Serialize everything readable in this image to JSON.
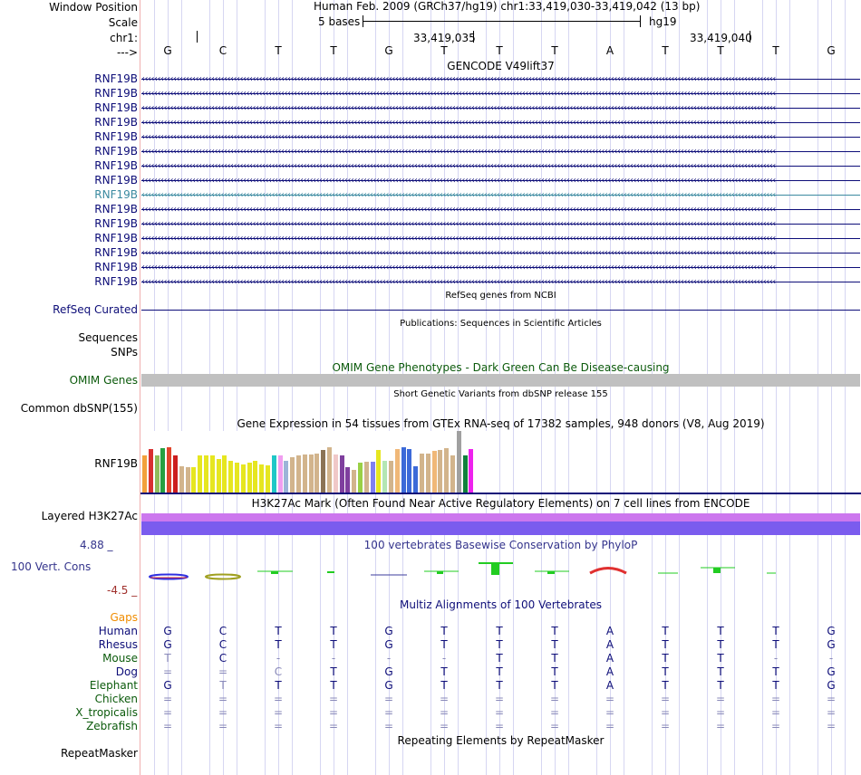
{
  "header": {
    "window_position_label": "Window Position",
    "title_line": "Human Feb. 2009 (GRCh37/hg19)   chr1:33,419,030-33,419,042 (13 bp)",
    "scale_label": "Scale",
    "scale_text": "5 bases",
    "assembly": "hg19",
    "chrom_label": "chr1:",
    "pos1": "33,419,035",
    "pos2": "33,419,040",
    "strand_label": "--->"
  },
  "sequence": [
    "G",
    "C",
    "T",
    "T",
    "G",
    "T",
    "T",
    "T",
    "A",
    "T",
    "T",
    "T",
    "G"
  ],
  "gencode": {
    "title": "GENCODE V49lift37",
    "genes": [
      "RNF19B",
      "RNF19B",
      "RNF19B",
      "RNF19B",
      "RNF19B",
      "RNF19B",
      "RNF19B",
      "RNF19B",
      "RNF19B",
      "RNF19B",
      "RNF19B",
      "RNF19B",
      "RNF19B",
      "RNF19B",
      "RNF19B"
    ],
    "highlight_color": "#3b8aa0",
    "normal_color": "#0d0d78"
  },
  "refseq": {
    "title": "RefSeq genes from NCBI",
    "label": "RefSeq Curated"
  },
  "publications": {
    "title": "Publications: Sequences in Scientific Articles",
    "label1": "Sequences",
    "label2": "SNPs"
  },
  "omim": {
    "title": "OMIM Gene Phenotypes - Dark Green Can Be Disease-causing",
    "label": "OMIM Genes",
    "bar_color": "#c0c0c0",
    "text_color": "#0b5a0b"
  },
  "dbsnp": {
    "title": "Short Genetic Variants from dbSNP release 155",
    "label": "Common dbSNP(155)"
  },
  "gtex": {
    "title": "Gene Expression in 54 tissues from GTEx RNA-seq of 17382 samples, 948 donors (V8, Aug 2019)",
    "label": "RNF19B",
    "chart_data": {
      "type": "bar",
      "title": "Gene Expression in 54 tissues from GTEx RNA-seq of 17382 samples, 948 donors (V8, Aug 2019)",
      "values": [
        0.6,
        0.71,
        0.6,
        0.72,
        0.73,
        0.6,
        0.42,
        0.41,
        0.41,
        0.6,
        0.6,
        0.6,
        0.55,
        0.6,
        0.52,
        0.48,
        0.46,
        0.48,
        0.52,
        0.45,
        0.44,
        0.6,
        0.6,
        0.52,
        0.58,
        0.6,
        0.62,
        0.62,
        0.63,
        0.69,
        0.74,
        0.62,
        0.6,
        0.41,
        0.37,
        0.48,
        0.5,
        0.5,
        0.69,
        0.52,
        0.51,
        0.71,
        0.73,
        0.7,
        0.42,
        0.63,
        0.63,
        0.67,
        0.69,
        0.72,
        0.61,
        1.0,
        0.61,
        0.71
      ],
      "colors": [
        "#f2a03c",
        "#d83030",
        "#8fbc5a",
        "#26a041",
        "#e0442a",
        "#cc1e1e",
        "#d2b48c",
        "#d2b48c",
        "#e6e620",
        "#e6e620",
        "#e6e620",
        "#e6e620",
        "#e6e620",
        "#e6e620",
        "#e6e620",
        "#e6e620",
        "#e6e620",
        "#e6e620",
        "#e6e620",
        "#e6e620",
        "#e6e620",
        "#20c7c7",
        "#f09ef0",
        "#9cb4d8",
        "#d2b48c",
        "#d2b48c",
        "#d2b48c",
        "#d2b48c",
        "#d2b48c",
        "#8b7355",
        "#d2b48c",
        "#f0c8c8",
        "#7f3f9e",
        "#7f3f9e",
        "#d2b48c",
        "#9ad046",
        "#d2b48c",
        "#8080f0",
        "#e6e620",
        "#b4e6b4",
        "#d2b48c",
        "#f0b878",
        "#3c6ad8",
        "#3c6ad8",
        "#3c6ad8",
        "#d2b48c",
        "#d2b48c",
        "#f0b878",
        "#d2b48c",
        "#d2b48c",
        "#d2b48c",
        "#a0a0a0",
        "#10803c",
        "#ee22ee"
      ]
    }
  },
  "h3k27ac": {
    "title": "H3K27Ac Mark (Often Found Near Active Regulatory Elements) on 7 cell lines from ENCODE",
    "label": "Layered H3K27Ac",
    "colors": [
      "#cc77ee",
      "#7b5cee"
    ]
  },
  "conservation": {
    "title": "100 vertebrates Basewise Conservation by PhyloP",
    "label": "100 Vert. Cons",
    "ymax": "4.88 _",
    "ymin": "-4.5 _"
  },
  "multiz": {
    "title": "Multiz Alignments of 100 Vertebrates",
    "gaps_label": "Gaps",
    "species": [
      {
        "name": "Human",
        "color": "#0d0d78",
        "bases": [
          "G",
          "C",
          "T",
          "T",
          "G",
          "T",
          "T",
          "T",
          "A",
          "T",
          "T",
          "T",
          "G"
        ]
      },
      {
        "name": "Rhesus",
        "color": "#0d0d78",
        "bases": [
          "G",
          "C",
          "T",
          "T",
          "G",
          "T",
          "T",
          "T",
          "A",
          "T",
          "T",
          "T",
          "G"
        ]
      },
      {
        "name": "Mouse",
        "color": "#0b5a0b",
        "bases": [
          "T",
          "C",
          "-",
          "-",
          "-",
          "-",
          "T",
          "T",
          "A",
          "T",
          "T",
          "-",
          "-"
        ]
      },
      {
        "name": "Dog",
        "color": "#0d0d78",
        "bases": [
          "=",
          "=",
          "C",
          "T",
          "G",
          "T",
          "T",
          "T",
          "A",
          "T",
          "T",
          "T",
          "G"
        ]
      },
      {
        "name": "Elephant",
        "color": "#0b5a0b",
        "bases": [
          "G",
          "T",
          "T",
          "T",
          "G",
          "T",
          "T",
          "T",
          "A",
          "T",
          "T",
          "T",
          "G"
        ]
      },
      {
        "name": "Chicken",
        "color": "#0b5a0b",
        "bases": [
          "=",
          "=",
          "=",
          "=",
          "=",
          "=",
          "=",
          "=",
          "=",
          "=",
          "=",
          "=",
          "="
        ]
      },
      {
        "name": "X_tropicalis",
        "color": "#0b5a0b",
        "bases": [
          "=",
          "=",
          "=",
          "=",
          "=",
          "=",
          "=",
          "=",
          "=",
          "=",
          "=",
          "=",
          "="
        ]
      },
      {
        "name": "Zebrafish",
        "color": "#0b5a0b",
        "bases": [
          "=",
          "=",
          "=",
          "=",
          "=",
          "=",
          "=",
          "=",
          "=",
          "=",
          "=",
          "=",
          "="
        ]
      }
    ]
  },
  "repeatmasker": {
    "title": "Repeating Elements by RepeatMasker",
    "label": "RepeatMasker"
  }
}
